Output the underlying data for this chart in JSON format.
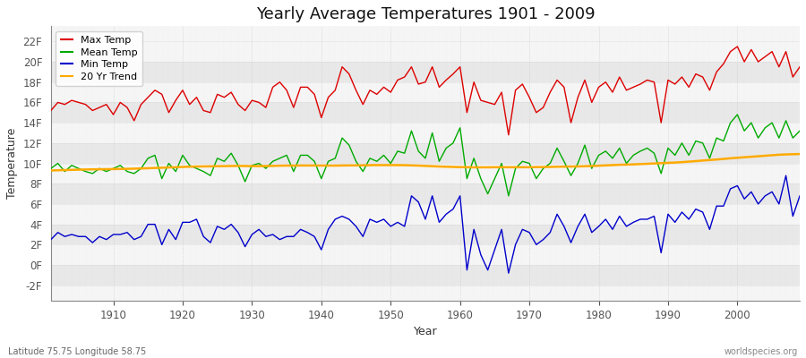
{
  "years": [
    1901,
    1902,
    1903,
    1904,
    1905,
    1906,
    1907,
    1908,
    1909,
    1910,
    1911,
    1912,
    1913,
    1914,
    1915,
    1916,
    1917,
    1918,
    1919,
    1920,
    1921,
    1922,
    1923,
    1924,
    1925,
    1926,
    1927,
    1928,
    1929,
    1930,
    1931,
    1932,
    1933,
    1934,
    1935,
    1936,
    1937,
    1938,
    1939,
    1940,
    1941,
    1942,
    1943,
    1944,
    1945,
    1946,
    1947,
    1948,
    1949,
    1950,
    1951,
    1952,
    1953,
    1954,
    1955,
    1956,
    1957,
    1958,
    1959,
    1960,
    1961,
    1962,
    1963,
    1964,
    1965,
    1966,
    1967,
    1968,
    1969,
    1970,
    1971,
    1972,
    1973,
    1974,
    1975,
    1976,
    1977,
    1978,
    1979,
    1980,
    1981,
    1982,
    1983,
    1984,
    1985,
    1986,
    1987,
    1988,
    1989,
    1990,
    1991,
    1992,
    1993,
    1994,
    1995,
    1996,
    1997,
    1998,
    1999,
    2000,
    2001,
    2002,
    2003,
    2004,
    2005,
    2006,
    2007,
    2008,
    2009
  ],
  "max_temp": [
    15.2,
    16.0,
    15.8,
    16.2,
    16.0,
    15.8,
    15.2,
    15.5,
    15.8,
    14.8,
    16.0,
    15.5,
    14.2,
    15.8,
    16.5,
    17.2,
    16.8,
    15.0,
    16.2,
    17.2,
    15.8,
    16.5,
    15.2,
    15.0,
    16.8,
    16.5,
    17.0,
    15.8,
    15.2,
    16.2,
    16.0,
    15.5,
    17.5,
    18.0,
    17.2,
    15.5,
    17.5,
    17.5,
    16.8,
    14.5,
    16.5,
    17.2,
    19.5,
    18.8,
    17.2,
    15.8,
    17.2,
    16.8,
    17.5,
    17.0,
    18.2,
    18.5,
    19.5,
    17.8,
    18.0,
    19.5,
    17.5,
    18.2,
    18.8,
    19.5,
    15.0,
    18.0,
    16.2,
    16.0,
    15.8,
    17.0,
    12.8,
    17.2,
    17.8,
    16.5,
    15.0,
    15.5,
    17.0,
    18.2,
    17.5,
    14.0,
    16.5,
    18.2,
    16.0,
    17.5,
    18.0,
    17.0,
    18.5,
    17.2,
    17.5,
    17.8,
    18.2,
    18.0,
    14.0,
    18.2,
    17.8,
    18.5,
    17.5,
    18.8,
    18.5,
    17.2,
    19.0,
    19.8,
    21.0,
    21.5,
    20.0,
    21.2,
    20.0,
    20.5,
    21.0,
    19.5,
    21.0,
    18.5,
    19.5
  ],
  "mean_temp": [
    9.5,
    10.0,
    9.2,
    9.8,
    9.5,
    9.2,
    9.0,
    9.5,
    9.2,
    9.5,
    9.8,
    9.2,
    9.0,
    9.5,
    10.5,
    10.8,
    8.5,
    10.0,
    9.2,
    10.8,
    9.8,
    9.5,
    9.2,
    8.8,
    10.5,
    10.2,
    11.0,
    9.8,
    8.2,
    9.8,
    10.0,
    9.5,
    10.2,
    10.5,
    10.8,
    9.2,
    10.8,
    10.8,
    10.2,
    8.5,
    10.2,
    10.5,
    12.5,
    11.8,
    10.2,
    9.2,
    10.5,
    10.2,
    10.8,
    10.0,
    11.2,
    11.0,
    13.2,
    11.2,
    10.5,
    13.0,
    10.2,
    11.5,
    12.0,
    13.5,
    8.5,
    10.5,
    8.5,
    7.0,
    8.5,
    10.0,
    6.8,
    9.5,
    10.2,
    10.0,
    8.5,
    9.5,
    10.0,
    11.5,
    10.2,
    8.8,
    10.0,
    11.8,
    9.5,
    10.8,
    11.2,
    10.5,
    11.5,
    10.0,
    10.8,
    11.2,
    11.5,
    11.0,
    9.0,
    11.5,
    10.8,
    12.0,
    10.8,
    12.2,
    12.0,
    10.5,
    12.5,
    12.2,
    14.0,
    14.8,
    13.2,
    14.0,
    12.5,
    13.5,
    14.0,
    12.5,
    14.2,
    12.5,
    13.2
  ],
  "min_temp": [
    2.5,
    3.2,
    2.8,
    3.0,
    2.8,
    2.8,
    2.2,
    2.8,
    2.5,
    3.0,
    3.0,
    3.2,
    2.5,
    2.8,
    4.0,
    4.0,
    2.0,
    3.5,
    2.5,
    4.2,
    4.2,
    4.5,
    2.8,
    2.2,
    3.8,
    3.5,
    4.0,
    3.2,
    1.8,
    3.0,
    3.5,
    2.8,
    3.0,
    2.5,
    2.8,
    2.8,
    3.5,
    3.2,
    2.8,
    1.5,
    3.5,
    4.5,
    4.8,
    4.5,
    3.8,
    2.8,
    4.5,
    4.2,
    4.5,
    3.8,
    4.2,
    3.8,
    6.8,
    6.2,
    4.5,
    6.8,
    4.2,
    5.0,
    5.5,
    6.8,
    -0.5,
    3.5,
    1.0,
    -0.5,
    1.5,
    3.5,
    -0.8,
    2.0,
    3.5,
    3.2,
    2.0,
    2.5,
    3.2,
    5.0,
    3.8,
    2.2,
    3.8,
    5.0,
    3.2,
    3.8,
    4.5,
    3.5,
    4.8,
    3.8,
    4.2,
    4.5,
    4.5,
    4.8,
    1.2,
    5.0,
    4.2,
    5.2,
    4.5,
    5.5,
    5.2,
    3.5,
    5.8,
    5.8,
    7.5,
    7.8,
    6.5,
    7.2,
    6.0,
    6.8,
    7.2,
    6.0,
    8.8,
    4.8,
    6.8
  ],
  "trend": [
    9.3,
    9.32,
    9.34,
    9.36,
    9.38,
    9.4,
    9.41,
    9.42,
    9.43,
    9.44,
    9.45,
    9.46,
    9.48,
    9.5,
    9.52,
    9.55,
    9.57,
    9.6,
    9.62,
    9.65,
    9.67,
    9.69,
    9.7,
    9.71,
    9.72,
    9.73,
    9.74,
    9.75,
    9.74,
    9.73,
    9.73,
    9.74,
    9.75,
    9.77,
    9.78,
    9.78,
    9.79,
    9.79,
    9.79,
    9.78,
    9.78,
    9.78,
    9.79,
    9.8,
    9.8,
    9.81,
    9.82,
    9.83,
    9.83,
    9.83,
    9.83,
    9.82,
    9.8,
    9.78,
    9.75,
    9.72,
    9.69,
    9.67,
    9.65,
    9.63,
    9.62,
    9.61,
    9.61,
    9.61,
    9.62,
    9.62,
    9.62,
    9.62,
    9.62,
    9.62,
    9.63,
    9.64,
    9.65,
    9.67,
    9.68,
    9.69,
    9.7,
    9.72,
    9.74,
    9.77,
    9.8,
    9.83,
    9.86,
    9.88,
    9.9,
    9.93,
    9.96,
    9.99,
    10.02,
    10.05,
    10.08,
    10.12,
    10.17,
    10.22,
    10.28,
    10.33,
    10.38,
    10.44,
    10.5,
    10.55,
    10.6,
    10.65,
    10.7,
    10.75,
    10.8,
    10.85,
    10.88,
    10.9,
    10.92
  ],
  "title": "Yearly Average Temperatures 1901 - 2009",
  "xlabel": "Year",
  "ylabel": "Temperature",
  "yticks": [
    -2,
    0,
    2,
    4,
    6,
    8,
    10,
    12,
    14,
    16,
    18,
    20,
    22
  ],
  "ytick_labels": [
    "-2F",
    "0F",
    "2F",
    "4F",
    "6F",
    "8F",
    "10F",
    "12F",
    "14F",
    "16F",
    "18F",
    "20F",
    "22F"
  ],
  "xticks": [
    1910,
    1920,
    1930,
    1940,
    1950,
    1960,
    1970,
    1980,
    1990,
    2000
  ],
  "ylim": [
    -3.5,
    23.5
  ],
  "xlim": [
    1901,
    2009
  ],
  "max_color": "#dd0000",
  "mean_color": "#00aa00",
  "min_color": "#0000cc",
  "trend_color": "#ffaa00",
  "legend_labels": [
    "Max Temp",
    "Mean Temp",
    "Min Temp",
    "20 Yr Trend"
  ],
  "subtitle_left": "Latitude 75.75 Longitude 58.75",
  "subtitle_right": "worldspecies.org",
  "linewidth": 1.0,
  "trend_linewidth": 1.8,
  "band_colors": [
    "#e8e8e8",
    "#f5f5f5"
  ],
  "figure_bg": "#ffffff",
  "plot_bg": "#f5f5f5"
}
